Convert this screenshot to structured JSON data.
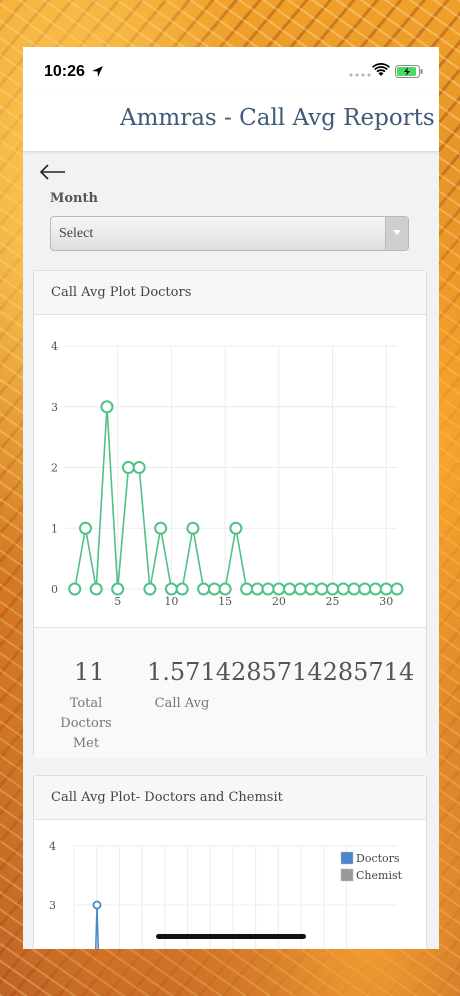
{
  "status_bar": {
    "time": "10:26"
  },
  "header": {
    "title": "Ammras - Call Avg Reports"
  },
  "filter": {
    "month_label": "Month",
    "month_value": "Select"
  },
  "card1": {
    "title": "Call Avg Plot Doctors",
    "stats": {
      "total_value": "11",
      "total_label_line1": "Total",
      "total_label_line2": "Doctors Met",
      "avg_value": "1.5714285714285714",
      "avg_label": "Call Avg"
    }
  },
  "card2": {
    "title": "Call Avg Plot- Doctors and Chemsit"
  },
  "chart_data": [
    {
      "type": "line",
      "title": "Call Avg Plot Doctors",
      "xlabel": "",
      "ylabel": "",
      "xlim": [
        0,
        31
      ],
      "ylim": [
        0,
        4
      ],
      "x_ticks": [
        5,
        10,
        15,
        20,
        25,
        30
      ],
      "y_ticks": [
        0,
        1,
        2,
        3,
        4
      ],
      "grid": true,
      "series": [
        {
          "color": "#4fc287",
          "x": [
            1,
            2,
            3,
            4,
            5,
            6,
            7,
            8,
            9,
            10,
            11,
            12,
            13,
            14,
            15,
            16,
            17,
            18,
            19,
            20,
            21,
            22,
            23,
            24,
            25,
            26,
            27,
            28,
            29,
            30,
            31
          ],
          "values": [
            0,
            1,
            0,
            3,
            0,
            2,
            2,
            0,
            1,
            0,
            0,
            1,
            0,
            0,
            0,
            1,
            0,
            0,
            0,
            0,
            0,
            0,
            0,
            0,
            0,
            0,
            0,
            0,
            0,
            0,
            0
          ]
        }
      ]
    },
    {
      "type": "line",
      "title": "Call Avg Plot- Doctors and Chemsit",
      "ylim": [
        0,
        4
      ],
      "y_ticks": [
        3,
        4
      ],
      "legend_position": "top-right",
      "grid": true,
      "series": [
        {
          "name": "Doctors",
          "color": "#4a86c8",
          "x": [
            4
          ],
          "values": [
            3
          ]
        },
        {
          "name": "Chemist",
          "color": "#999999",
          "x": [],
          "values": []
        }
      ]
    }
  ]
}
